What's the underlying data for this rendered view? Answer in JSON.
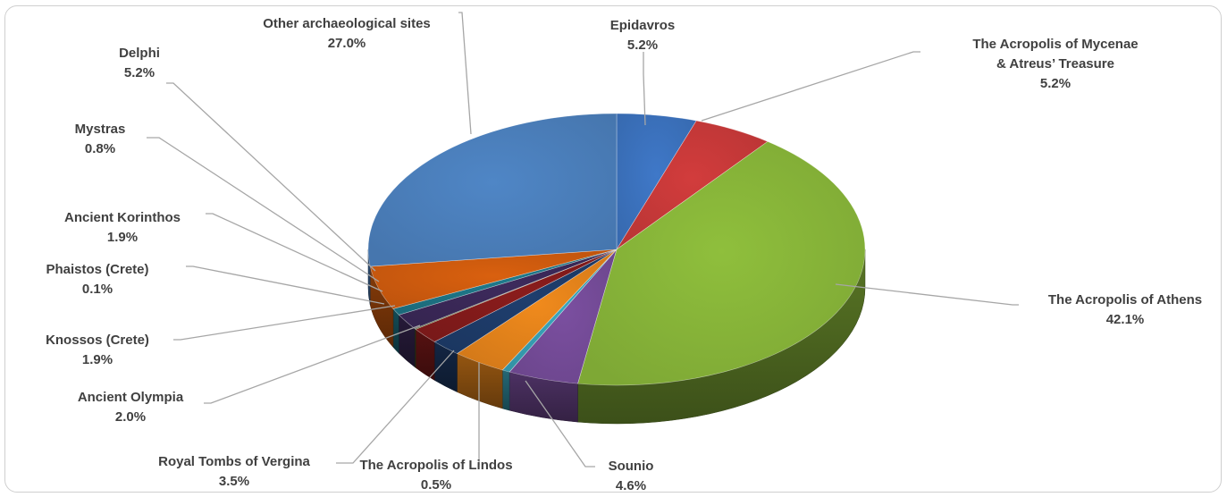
{
  "chart_data": {
    "type": "pie",
    "style": "3d-exploded-none",
    "legend": "none",
    "slices": [
      {
        "name": "Epidavros",
        "label_lines": [
          "Epidavros"
        ],
        "value_text": "5.2%",
        "value": 5.2,
        "color": "#3f78c8"
      },
      {
        "name": "The Acropolis of Mycenae & Atreus’ Treasure",
        "label_lines": [
          "The Acropolis of Mycenae",
          "& Atreus’ Treasure"
        ],
        "value_text": "5.2%",
        "value": 5.2,
        "color": "#d23c3c"
      },
      {
        "name": "The Acropolis of Athens",
        "label_lines": [
          "The Acropolis of Athens"
        ],
        "value_text": "42.1%",
        "value": 42.1,
        "color": "#8fbf3c"
      },
      {
        "name": "Sounio",
        "label_lines": [
          "Sounio"
        ],
        "value_text": "4.6%",
        "value": 4.6,
        "color": "#7b4fa0"
      },
      {
        "name": "The Acropolis of Lindos",
        "label_lines": [
          "The Acropolis of Lindos"
        ],
        "value_text": "0.5%",
        "value": 0.5,
        "color": "#3aa7bd"
      },
      {
        "name": "Royal Tombs of Vergina",
        "label_lines": [
          "Royal Tombs of Vergina"
        ],
        "value_text": "3.5%",
        "value": 3.5,
        "color": "#f08a1c"
      },
      {
        "name": "Ancient Olympia",
        "label_lines": [
          "Ancient Olympia"
        ],
        "value_text": "2.0%",
        "value": 2.0,
        "color": "#1f3e6e"
      },
      {
        "name": "Knossos (Crete)",
        "label_lines": [
          "Knossos (Crete)"
        ],
        "value_text": "1.9%",
        "value": 1.9,
        "color": "#8a1c1c"
      },
      {
        "name": "Phaistos (Crete)",
        "label_lines": [
          "Phaistos (Crete)"
        ],
        "value_text": "0.1%",
        "value": 0.1,
        "color": "#4a6a24"
      },
      {
        "name": "Ancient Korinthos",
        "label_lines": [
          "Ancient Korinthos"
        ],
        "value_text": "1.9%",
        "value": 1.9,
        "color": "#3d2a5c"
      },
      {
        "name": "Mystras",
        "label_lines": [
          "Mystras"
        ],
        "value_text": "0.8%",
        "value": 0.8,
        "color": "#1f7a8c"
      },
      {
        "name": "Delphi",
        "label_lines": [
          "Delphi"
        ],
        "value_text": "5.2%",
        "value": 5.2,
        "color": "#d9600f"
      },
      {
        "name": "Other archaeological sites",
        "label_lines": [
          "Other archaeological sites"
        ],
        "value_text": "27.0%",
        "value": 27.0,
        "color": "#4f86c6"
      }
    ]
  }
}
